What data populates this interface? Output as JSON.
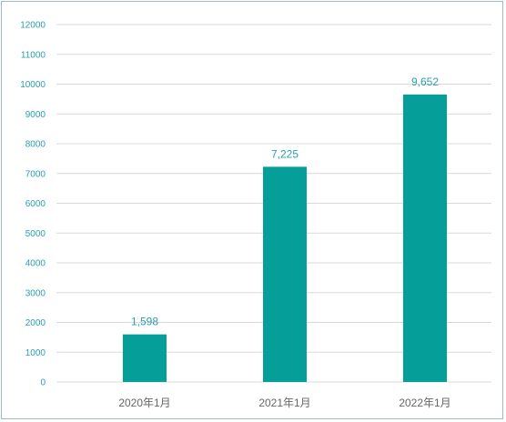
{
  "chart_data": {
    "type": "bar",
    "categories": [
      "2020年1月",
      "2021年1月",
      "2022年1月"
    ],
    "values": [
      1598,
      7225,
      9652
    ],
    "value_labels": [
      "1,598",
      "7,225",
      "9,652"
    ],
    "ylim": [
      0,
      12000
    ],
    "yticks": [
      0,
      1000,
      2000,
      3000,
      4000,
      5000,
      6000,
      7000,
      8000,
      9000,
      10000,
      11000,
      12000
    ],
    "grid": true,
    "colors": {
      "bar": "#069e98",
      "grid": "#d9d9d9",
      "axis_text": "#2a9fb0",
      "category_text": "#666666",
      "label_text": "#2a9fb0"
    }
  }
}
